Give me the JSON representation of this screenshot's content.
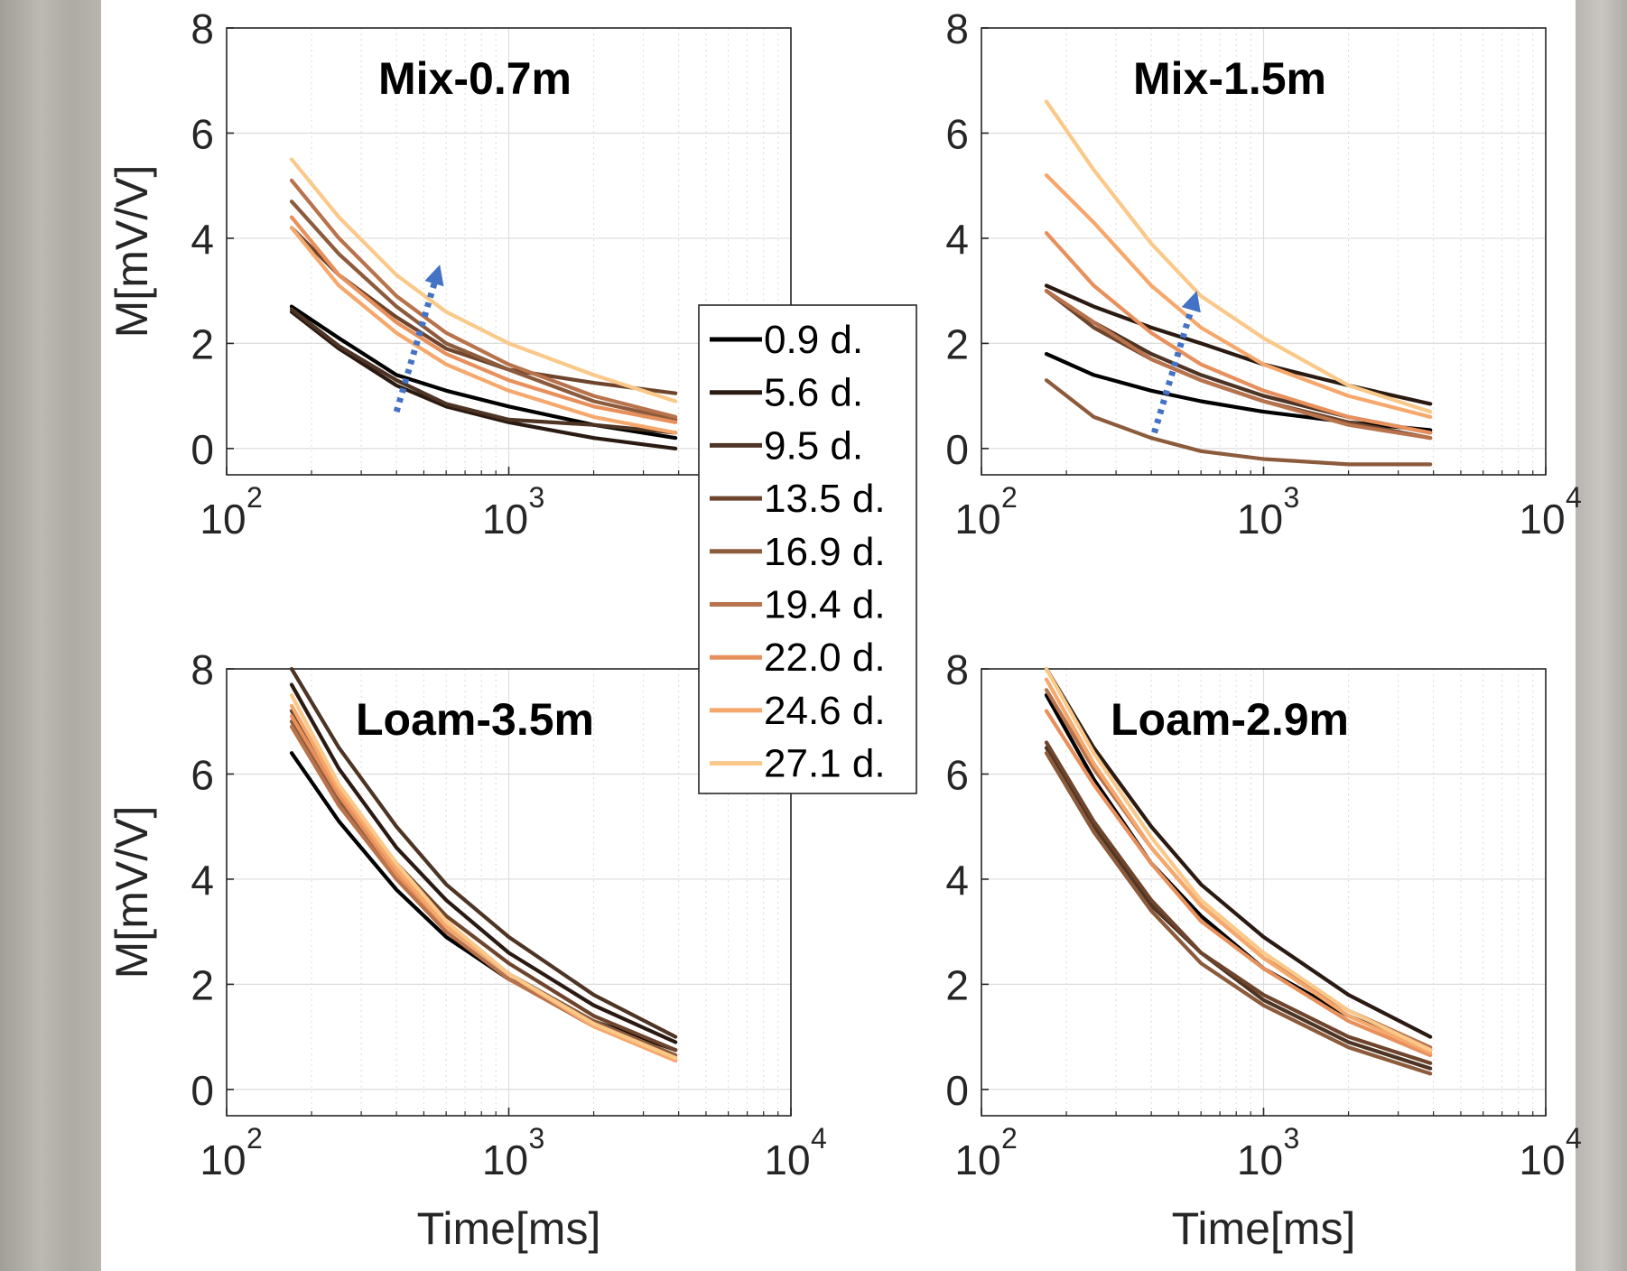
{
  "chart_data": [
    {
      "type": "line",
      "title": "Mix-0.7m",
      "xlabel": "",
      "ylabel": "M[mV/V]",
      "xscale": "log",
      "xlim": [
        100,
        10000
      ],
      "ylim": [
        -0.5,
        8
      ],
      "xticks": [
        "10",
        "10",
        "10"
      ],
      "xtick_exponents": [
        "2",
        "3",
        "4"
      ],
      "yticks": [
        "0",
        "2",
        "4",
        "6",
        "8"
      ],
      "grid": true,
      "x": [
        170,
        250,
        400,
        600,
        1000,
        2000,
        3900
      ],
      "series": [
        {
          "name": "0.9 d.",
          "values": [
            2.7,
            2.1,
            1.4,
            1.1,
            0.8,
            0.45,
            0.2
          ]
        },
        {
          "name": "5.6 d.",
          "values": [
            2.6,
            1.9,
            1.2,
            0.8,
            0.5,
            0.2,
            0.0
          ]
        },
        {
          "name": "9.5 d.",
          "values": [
            2.65,
            1.95,
            1.3,
            0.85,
            0.55,
            0.45,
            0.3
          ]
        },
        {
          "name": "13.5 d.",
          "values": [
            4.2,
            3.3,
            2.5,
            1.9,
            1.5,
            1.25,
            1.05
          ]
        },
        {
          "name": "16.9 d.",
          "values": [
            4.7,
            3.7,
            2.7,
            2.0,
            1.5,
            0.9,
            0.55
          ]
        },
        {
          "name": "19.4 d.",
          "values": [
            5.1,
            4.0,
            2.9,
            2.2,
            1.6,
            1.0,
            0.6
          ]
        },
        {
          "name": "22.0 d.",
          "values": [
            4.4,
            3.3,
            2.4,
            1.8,
            1.3,
            0.8,
            0.5
          ]
        },
        {
          "name": "24.6 d.",
          "values": [
            4.2,
            3.1,
            2.2,
            1.6,
            1.1,
            0.6,
            0.3
          ]
        },
        {
          "name": "27.1 d.",
          "values": [
            5.5,
            4.4,
            3.3,
            2.6,
            2.0,
            1.4,
            0.9
          ]
        }
      ],
      "annotations": [
        {
          "type": "arrow",
          "from": [
            400,
            0.7
          ],
          "to": [
            570,
            3.5
          ]
        }
      ]
    },
    {
      "type": "line",
      "title": "Mix-1.5m",
      "xlabel": "",
      "ylabel": "",
      "xscale": "log",
      "xlim": [
        100,
        10000
      ],
      "ylim": [
        -0.5,
        8
      ],
      "xticks": [
        "10",
        "10",
        "10"
      ],
      "xtick_exponents": [
        "2",
        "3",
        "4"
      ],
      "yticks": [
        "0",
        "2",
        "4",
        "6",
        "8"
      ],
      "grid": true,
      "x": [
        170,
        250,
        400,
        600,
        1000,
        2000,
        3900
      ],
      "series": [
        {
          "name": "0.9 d.",
          "values": [
            1.8,
            1.4,
            1.1,
            0.9,
            0.7,
            0.5,
            0.35
          ]
        },
        {
          "name": "5.6 d.",
          "values": [
            3.1,
            2.7,
            2.3,
            2.0,
            1.6,
            1.2,
            0.85
          ]
        },
        {
          "name": "9.5 d.",
          "values": [
            3.0,
            2.4,
            1.8,
            1.4,
            1.0,
            0.6,
            0.3
          ]
        },
        {
          "name": "13.5 d.",
          "values": [
            3.0,
            2.3,
            1.7,
            1.3,
            0.9,
            0.5,
            0.2
          ]
        },
        {
          "name": "16.9 d.",
          "values": [
            1.3,
            0.6,
            0.2,
            -0.05,
            -0.2,
            -0.3,
            -0.3
          ]
        },
        {
          "name": "19.4 d.",
          "values": [
            3.0,
            2.4,
            1.7,
            1.3,
            0.9,
            0.45,
            0.2
          ]
        },
        {
          "name": "22.0 d.",
          "values": [
            4.1,
            3.1,
            2.2,
            1.6,
            1.1,
            0.6,
            0.3
          ]
        },
        {
          "name": "24.6 d.",
          "values": [
            5.2,
            4.3,
            3.1,
            2.3,
            1.6,
            1.0,
            0.6
          ]
        },
        {
          "name": "27.1 d.",
          "values": [
            6.6,
            5.3,
            3.9,
            2.9,
            2.1,
            1.2,
            0.7
          ]
        }
      ],
      "annotations": [
        {
          "type": "arrow",
          "from": [
            410,
            0.3
          ],
          "to": [
            580,
            3.0
          ]
        }
      ]
    },
    {
      "type": "line",
      "title": "Loam-3.5m",
      "xlabel": "Time[ms]",
      "ylabel": "M[mV/V]",
      "xscale": "log",
      "xlim": [
        100,
        10000
      ],
      "ylim": [
        -0.5,
        8
      ],
      "xticks": [
        "10",
        "10",
        "10"
      ],
      "xtick_exponents": [
        "2",
        "3",
        "4"
      ],
      "yticks": [
        "0",
        "2",
        "4",
        "6",
        "8"
      ],
      "grid": true,
      "x": [
        170,
        250,
        400,
        600,
        1000,
        2000,
        3900
      ],
      "series": [
        {
          "name": "0.9 d.",
          "values": [
            6.4,
            5.1,
            3.8,
            2.9,
            2.1,
            1.3,
            0.75
          ]
        },
        {
          "name": "5.6 d.",
          "values": [
            7.7,
            6.1,
            4.6,
            3.6,
            2.6,
            1.6,
            0.9
          ]
        },
        {
          "name": "9.5 d.",
          "values": [
            8.0,
            6.5,
            5.0,
            3.9,
            2.9,
            1.8,
            1.0
          ]
        },
        {
          "name": "13.5 d.",
          "values": [
            7.2,
            5.7,
            4.3,
            3.3,
            2.4,
            1.4,
            0.75
          ]
        },
        {
          "name": "16.9 d.",
          "values": [
            7.0,
            5.5,
            4.1,
            3.1,
            2.2,
            1.3,
            0.65
          ]
        },
        {
          "name": "19.4 d.",
          "values": [
            6.9,
            5.4,
            4.0,
            3.0,
            2.1,
            1.2,
            0.6
          ]
        },
        {
          "name": "22.0 d.",
          "values": [
            7.1,
            5.6,
            4.1,
            3.1,
            2.2,
            1.2,
            0.55
          ]
        },
        {
          "name": "24.6 d.",
          "values": [
            7.3,
            5.7,
            4.2,
            3.1,
            2.2,
            1.2,
            0.55
          ]
        },
        {
          "name": "27.1 d.",
          "values": [
            7.5,
            5.8,
            4.3,
            3.2,
            2.2,
            1.25,
            0.6
          ]
        }
      ]
    },
    {
      "type": "line",
      "title": "Loam-2.9m",
      "xlabel": "Time[ms]",
      "ylabel": "",
      "xscale": "log",
      "xlim": [
        100,
        10000
      ],
      "ylim": [
        -0.5,
        8
      ],
      "xticks": [
        "10",
        "10",
        "10"
      ],
      "xtick_exponents": [
        "2",
        "3",
        "4"
      ],
      "yticks": [
        "0",
        "2",
        "4",
        "6",
        "8"
      ],
      "grid": true,
      "x": [
        170,
        250,
        400,
        600,
        1000,
        2000,
        3900
      ],
      "series": [
        {
          "name": "0.9 d.",
          "values": [
            7.5,
            5.9,
            4.3,
            3.3,
            2.3,
            1.4,
            0.75
          ]
        },
        {
          "name": "5.6 d.",
          "values": [
            8.0,
            6.5,
            5.0,
            3.9,
            2.9,
            1.8,
            1.0
          ]
        },
        {
          "name": "9.5 d.",
          "values": [
            6.5,
            5.0,
            3.5,
            2.6,
            1.7,
            0.9,
            0.4
          ]
        },
        {
          "name": "13.5 d.",
          "values": [
            6.6,
            5.1,
            3.6,
            2.6,
            1.8,
            1.0,
            0.5
          ]
        },
        {
          "name": "16.9 d.",
          "values": [
            6.4,
            4.9,
            3.4,
            2.4,
            1.6,
            0.8,
            0.3
          ]
        },
        {
          "name": "19.4 d.",
          "values": [
            7.6,
            6.1,
            4.6,
            3.5,
            2.5,
            1.5,
            0.8
          ]
        },
        {
          "name": "22.0 d.",
          "values": [
            7.2,
            5.8,
            4.3,
            3.2,
            2.3,
            1.3,
            0.65
          ]
        },
        {
          "name": "24.6 d.",
          "values": [
            7.8,
            6.2,
            4.6,
            3.5,
            2.5,
            1.4,
            0.7
          ]
        },
        {
          "name": "27.1 d.",
          "values": [
            8.0,
            6.4,
            4.8,
            3.6,
            2.6,
            1.5,
            0.75
          ]
        }
      ]
    }
  ],
  "legend": {
    "placement": "center",
    "entries": [
      "0.9 d.",
      "5.6 d.",
      "9.5 d.",
      "13.5 d.",
      "16.9 d.",
      "19.4 d.",
      "22.0 d.",
      "24.6 d.",
      "27.1 d."
    ]
  },
  "colors": {
    "series": [
      "#000000",
      "#2a1a12",
      "#4d3424",
      "#6e452c",
      "#8c5b3c",
      "#b8734c",
      "#e8905c",
      "#f6a86c",
      "#fac98a"
    ],
    "arrow": "#4472c4",
    "axes": "#262626",
    "grid": "#dcdcdc",
    "figure_background": "#ffffff"
  }
}
